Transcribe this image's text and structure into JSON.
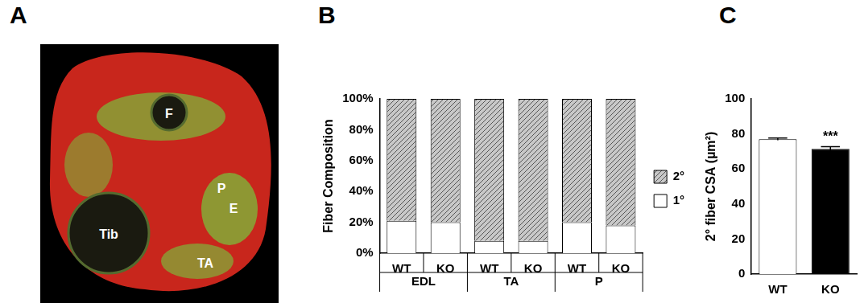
{
  "image": {
    "panel": "A",
    "labels": [
      "F",
      "P",
      "Tib",
      "E",
      "TA"
    ]
  },
  "chart_data": [
    {
      "panel": "B",
      "type": "bar",
      "stacked": true,
      "grid": false,
      "legend": "right",
      "categories": [
        "WT",
        "KO",
        "WT",
        "KO",
        "WT",
        "KO"
      ],
      "groups": [
        "EDL",
        "EDL",
        "TA",
        "TA",
        "P",
        "P"
      ],
      "y_label": "Fiber Composition",
      "ylim": [
        0,
        100
      ],
      "yticks": [
        {
          "value": 0,
          "label": "0%"
        },
        {
          "value": 20,
          "label": "20%"
        },
        {
          "value": 40,
          "label": "40%"
        },
        {
          "value": 60,
          "label": "60%"
        },
        {
          "value": 80,
          "label": "80%"
        },
        {
          "value": 100,
          "label": "100%"
        }
      ],
      "series": [
        {
          "name": "1°",
          "color": "#ffffff",
          "values": [
            21,
            20,
            8,
            8,
            20,
            18
          ]
        },
        {
          "name": "2°",
          "color": "#c8c8c8",
          "values": [
            79,
            80,
            92,
            92,
            80,
            82
          ]
        }
      ]
    },
    {
      "panel": "C",
      "type": "bar",
      "grid": false,
      "categories": [
        "WT",
        "KO"
      ],
      "values": [
        77,
        71.5
      ],
      "errors": [
        0.6,
        1.2
      ],
      "colors": [
        "#ffffff",
        "#000000"
      ],
      "y_label": "2° fiber CSA (µm²)",
      "ylim": [
        0,
        100
      ],
      "yticks": [
        0,
        20,
        40,
        60,
        80,
        100
      ],
      "annotations": [
        {
          "category": "KO",
          "text": "***"
        }
      ]
    }
  ]
}
